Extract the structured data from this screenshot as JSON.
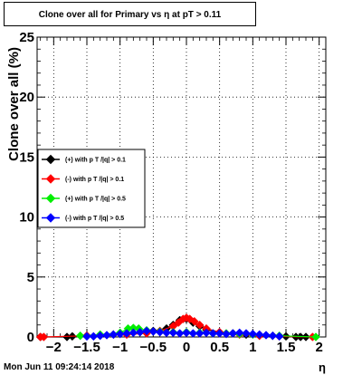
{
  "title": "Clone  over all for Primary vs   η at pT > 0.11",
  "timestamp": "Mon Jun 11 09:24:14 2018",
  "chart_data": {
    "type": "scatter",
    "title": "Clone  over all for Primary vs   η at pT > 0.11",
    "xlabel": "η",
    "ylabel": "Clone  over all (%)",
    "xlim": [
      -2.25,
      2.1
    ],
    "ylim": [
      0,
      25
    ],
    "xticks": [
      -2,
      -1.5,
      -1,
      -0.5,
      0,
      0.5,
      1,
      1.5,
      2
    ],
    "xtick_labels": [
      "−2",
      "−1.5",
      "−1",
      "−0.5",
      "0",
      "0.5",
      "1",
      "1.5",
      "2"
    ],
    "yticks": [
      0,
      5,
      10,
      15,
      20,
      25
    ],
    "ytick_labels": [
      "0",
      "5",
      "10",
      "15",
      "20",
      "25"
    ],
    "grid": true,
    "legend_position": "middle-left",
    "series": [
      {
        "name": "(+) with p T /|q| > 0.1",
        "color": "#000000",
        "x": [
          -2.2,
          -1.8,
          -1.72,
          -1.5,
          -1.3,
          -1.1,
          -0.9,
          -0.7,
          -0.5,
          -0.3,
          -0.2,
          -0.1,
          0.0,
          0.1,
          0.2,
          0.3,
          0.5,
          0.7,
          0.9,
          1.1,
          1.3,
          1.5,
          1.65,
          1.72,
          1.8
        ],
        "y": [
          0,
          0,
          0.05,
          0.1,
          0.15,
          0.2,
          0.3,
          0.4,
          0.5,
          0.7,
          1.0,
          1.4,
          1.5,
          1.2,
          0.9,
          0.6,
          0.4,
          0.3,
          0.2,
          0.15,
          0.1,
          0.05,
          0,
          0,
          0
        ]
      },
      {
        "name": "(-) with p T /|q| > 0.1",
        "color": "#ff0000",
        "x": [
          -2.2,
          -2.15,
          -1.5,
          -1.2,
          -0.9,
          -0.6,
          -0.4,
          -0.2,
          -0.12,
          -0.05,
          0.0,
          0.05,
          0.12,
          0.2,
          0.3,
          0.5,
          0.8,
          1.1,
          1.4,
          1.9
        ],
        "y": [
          0,
          0,
          0.1,
          0.15,
          0.2,
          0.3,
          0.5,
          0.9,
          1.2,
          1.5,
          1.6,
          1.5,
          1.3,
          1.0,
          0.7,
          0.4,
          0.2,
          0.1,
          0.05,
          0
        ]
      },
      {
        "name": "(+) with p T /|q| > 0.5",
        "color": "#00ee00",
        "x": [
          -1.6,
          -1.3,
          -1.0,
          -0.88,
          -0.8,
          -0.72,
          -0.6,
          -0.4,
          -0.2,
          0.0,
          0.2,
          0.4,
          0.6,
          0.8,
          1.0,
          1.2,
          1.4,
          1.95
        ],
        "y": [
          0.1,
          0.2,
          0.35,
          0.7,
          0.75,
          0.7,
          0.55,
          0.45,
          0.4,
          0.4,
          0.35,
          0.3,
          0.3,
          0.25,
          0.2,
          0.15,
          0.1,
          0
        ]
      },
      {
        "name": "(-) with p T /|q| > 0.5",
        "color": "#0000ff",
        "x": [
          -1.5,
          -1.4,
          -1.3,
          -1.2,
          -1.1,
          -1.0,
          -0.9,
          -0.8,
          -0.7,
          -0.6,
          -0.5,
          -0.4,
          -0.3,
          -0.2,
          -0.1,
          0.0,
          0.1,
          0.2,
          0.3,
          0.4,
          0.5,
          0.6,
          0.7,
          0.8,
          0.9,
          1.0,
          1.1,
          1.2,
          1.3,
          1.4
        ],
        "y": [
          0.05,
          0.05,
          0.1,
          0.15,
          0.2,
          0.25,
          0.3,
          0.35,
          0.4,
          0.5,
          0.45,
          0.4,
          0.35,
          0.35,
          0.3,
          0.35,
          0.3,
          0.3,
          0.35,
          0.3,
          0.3,
          0.25,
          0.3,
          0.35,
          0.3,
          0.25,
          0.2,
          0.15,
          0.1,
          0.05
        ]
      }
    ]
  }
}
